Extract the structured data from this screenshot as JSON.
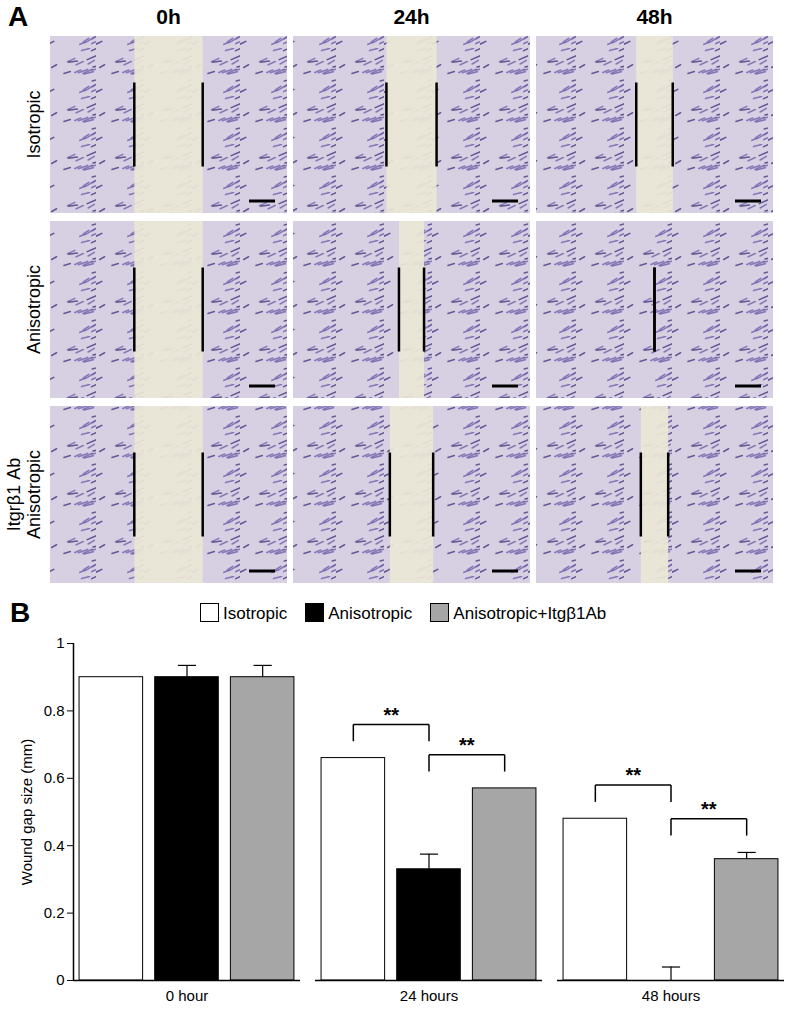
{
  "panel_a": {
    "label": "A",
    "columns": [
      "0h",
      "24h",
      "48h"
    ],
    "rows": [
      [
        "Isotropic"
      ],
      [
        "Anisotropic"
      ],
      [
        "Itgrβ1 Ab",
        "Anisotropic"
      ]
    ]
  },
  "chart_data": {
    "panel_label": "B",
    "type": "bar",
    "categories": [
      "0 hour",
      "24 hours",
      "48 hours"
    ],
    "series": [
      {
        "name": "Isotropic",
        "color": "#ffffff",
        "values": [
          0.9,
          0.66,
          0.48
        ],
        "errors": [
          null,
          null,
          null
        ]
      },
      {
        "name": "Anisotropic",
        "color": "#000000",
        "values": [
          0.9,
          0.33,
          0
        ],
        "errors": [
          0.035,
          0.045,
          0.04
        ]
      },
      {
        "name": "Anisotropic+Itgβ1Ab",
        "color": "#a6a6a6",
        "values": [
          0.9,
          0.57,
          0.36
        ],
        "errors": [
          0.035,
          null,
          0.02
        ]
      }
    ],
    "ylabel": "Wound gap size (mm)",
    "ylim": [
      0,
      1
    ],
    "yticks": [
      0,
      0.2,
      0.4,
      0.6,
      0.8,
      1
    ],
    "legend": "top",
    "annotations": [
      {
        "category": "24 hours",
        "between": [
          "Isotropic",
          "Anisotropic"
        ],
        "text": "**"
      },
      {
        "category": "24 hours",
        "between": [
          "Anisotropic",
          "Anisotropic+Itgβ1Ab"
        ],
        "text": "**"
      },
      {
        "category": "48 hours",
        "between": [
          "Isotropic",
          "Anisotropic"
        ],
        "text": "**"
      },
      {
        "category": "48 hours",
        "between": [
          "Anisotropic",
          "Anisotropic+Itgβ1Ab"
        ],
        "text": "**"
      }
    ]
  }
}
